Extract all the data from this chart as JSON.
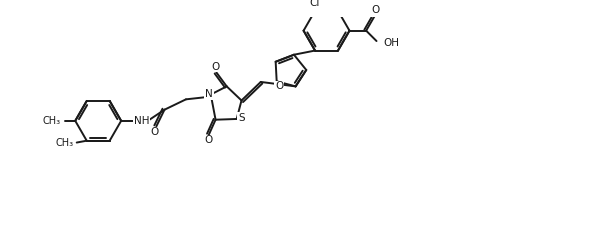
{
  "bg_color": "#ffffff",
  "line_color": "#1a1a1a",
  "line_width": 1.4,
  "font_size": 7.5,
  "figsize": [
    6.0,
    2.4
  ],
  "dpi": 100,
  "xlim": [
    0,
    14
  ],
  "ylim": [
    -1,
    5
  ]
}
